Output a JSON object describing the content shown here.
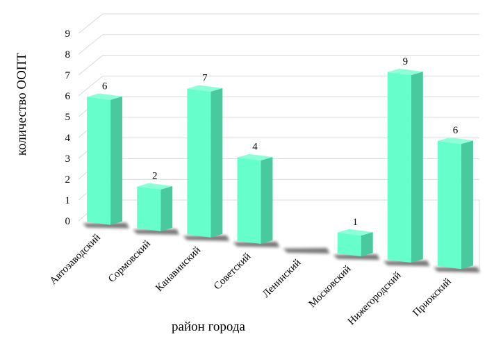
{
  "chart_data": {
    "type": "bar",
    "style": "3d-column",
    "categories": [
      "Автозаводский",
      "Сормовский",
      "Канавинский",
      "Советский",
      "Ленинский",
      "Московский",
      "Нижегородский",
      "Приокский"
    ],
    "values": [
      6,
      2,
      7,
      4,
      0,
      1,
      9,
      6
    ],
    "data_labels": [
      "6",
      "2",
      "7",
      "4",
      "",
      "1",
      "9",
      "6"
    ],
    "ylabel": "количество ООПТ",
    "xlabel": "район города",
    "ylim": [
      0,
      9
    ],
    "yticks": [
      "0",
      "1",
      "2",
      "3",
      "4",
      "5",
      "6",
      "7",
      "8",
      "9"
    ],
    "grid": true,
    "legend": "none",
    "colors": {
      "bar_front": "#66FFCC",
      "bar_side": "#49C99E",
      "bar_top": "#8CFFD9",
      "shadow": "#555555",
      "gridline": "#d9d9d9"
    }
  }
}
